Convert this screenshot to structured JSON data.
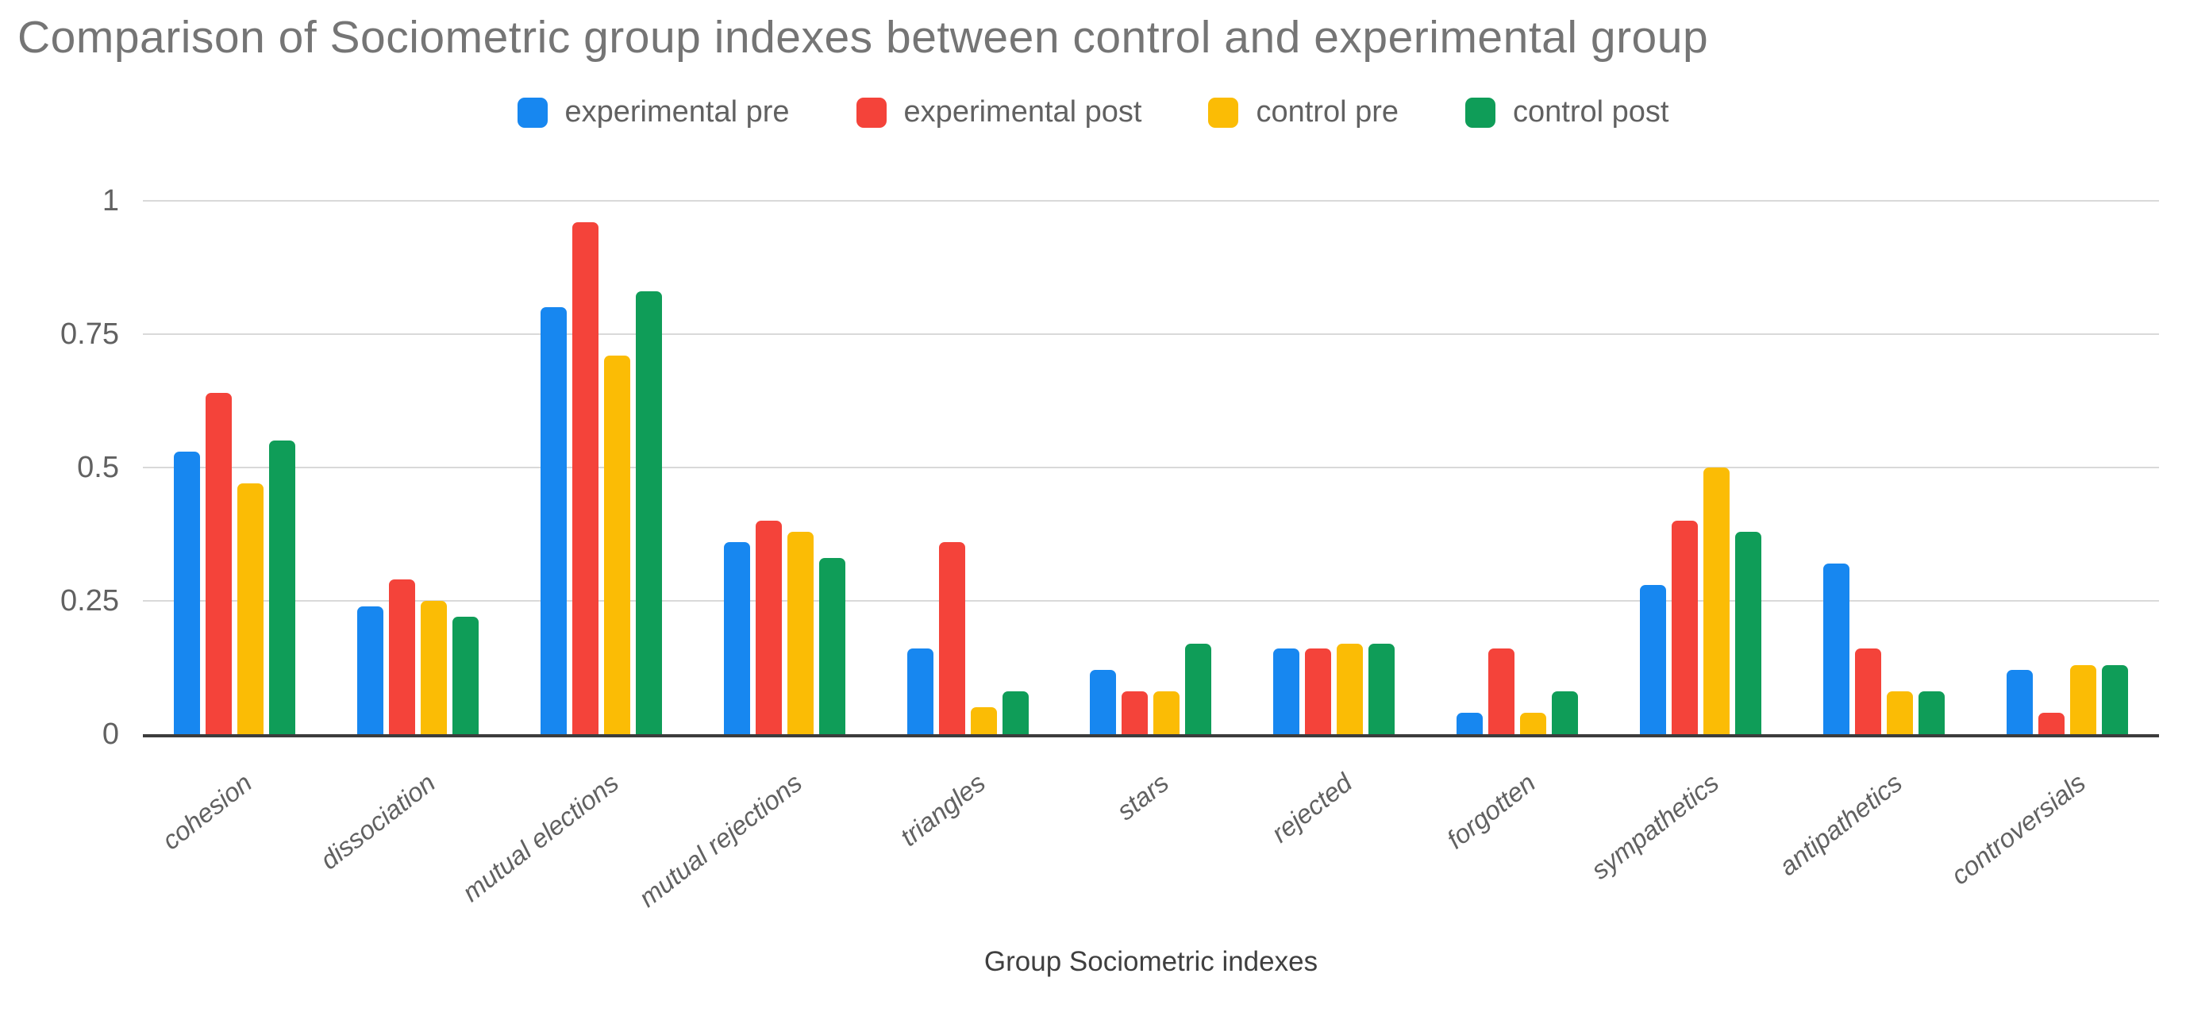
{
  "chart_data": {
    "type": "bar",
    "title": "Comparison of Sociometric group indexes between control and experimental group",
    "xlabel": "Group Sociometric indexes",
    "ylabel": "",
    "ylim": [
      0,
      1
    ],
    "y_ticks": [
      0,
      0.25,
      0.5,
      0.75,
      1
    ],
    "y_tick_labels": [
      "0",
      "0.25",
      "0.5",
      "0.75",
      "1"
    ],
    "grid": true,
    "legend_position": "top",
    "categories": [
      "cohesion",
      "dissociation",
      "mutual elections",
      "mutual rejections",
      "triangles",
      "stars",
      "rejected",
      "forgotten",
      "sympathetics",
      "antipathetics",
      "controversials"
    ],
    "series": [
      {
        "name": "experimental pre",
        "color": "#1787F0",
        "values": [
          0.53,
          0.24,
          0.8,
          0.36,
          0.16,
          0.12,
          0.16,
          0.04,
          0.28,
          0.32,
          0.12
        ]
      },
      {
        "name": "experimental post",
        "color": "#F4433A",
        "values": [
          0.64,
          0.29,
          0.96,
          0.4,
          0.36,
          0.08,
          0.16,
          0.16,
          0.4,
          0.16,
          0.04
        ]
      },
      {
        "name": "control pre",
        "color": "#FBBC05",
        "values": [
          0.47,
          0.25,
          0.71,
          0.38,
          0.05,
          0.08,
          0.17,
          0.04,
          0.5,
          0.08,
          0.13
        ]
      },
      {
        "name": "control post",
        "color": "#0F9D58",
        "values": [
          0.55,
          0.22,
          0.83,
          0.33,
          0.08,
          0.17,
          0.17,
          0.08,
          0.38,
          0.08,
          0.13
        ]
      }
    ],
    "colors": {
      "gridline": "#d9d9d9",
      "baseline": "#3c3c3c",
      "title_text": "#757575",
      "axis_text": "#616161"
    }
  }
}
